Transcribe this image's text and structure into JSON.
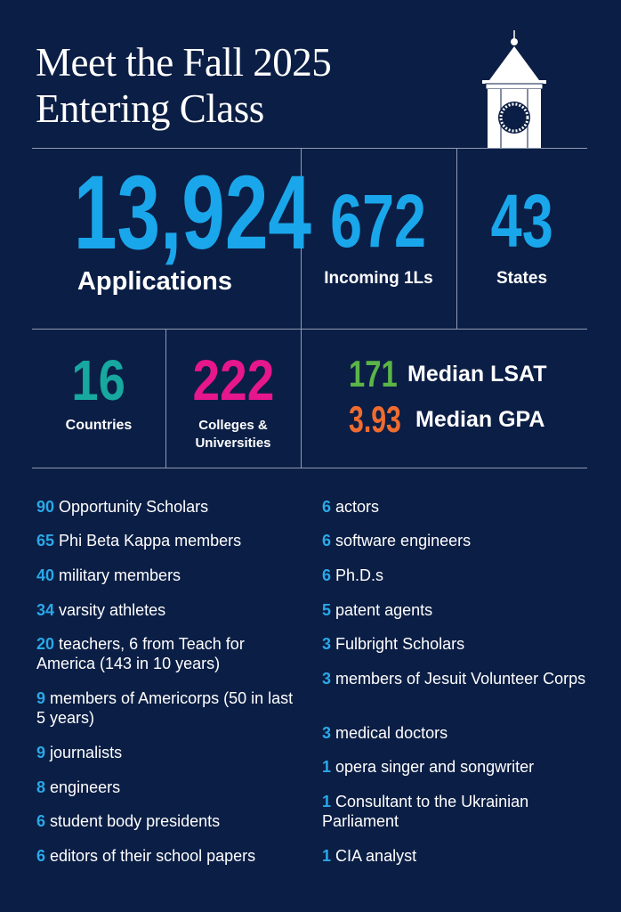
{
  "title": {
    "line1": "Meet the Fall 2025",
    "line2": "Entering Class"
  },
  "colors": {
    "background": "#0b1e45",
    "blue": "#1aa6ea",
    "teal": "#17a8a0",
    "magenta": "#e6168c",
    "green": "#5bb547",
    "orange": "#ef6c2f"
  },
  "icon": "clock-tower-icon",
  "stats": {
    "applications": {
      "value": "13,924",
      "label": "Applications"
    },
    "incoming": {
      "value": "672",
      "label": "Incoming 1Ls"
    },
    "states": {
      "value": "43",
      "label": "States"
    },
    "countries": {
      "value": "16",
      "label": "Countries"
    },
    "colleges": {
      "value": "222",
      "label1": "Colleges &",
      "label2": "Universities"
    },
    "lsat": {
      "value": "171",
      "label": "Median LSAT"
    },
    "gpa": {
      "value": "3.93",
      "label": "Median GPA"
    }
  },
  "left_list": [
    {
      "n": "90",
      "text": "Opportunity Scholars"
    },
    {
      "n": "65",
      "text": "Phi Beta Kappa members"
    },
    {
      "n": "40",
      "text": "military members"
    },
    {
      "n": "34",
      "text": "varsity athletes"
    },
    {
      "n": "20",
      "text": "teachers, 6 from Teach for America (143 in 10 years)"
    },
    {
      "n": "9",
      "text": "members of Americorps (50 in last 5 years)"
    },
    {
      "n": "9",
      "text": "journalists"
    },
    {
      "n": "8",
      "text": "engineers"
    },
    {
      "n": "6",
      "text": "student body presidents"
    },
    {
      "n": "6",
      "text": "editors of their school papers"
    }
  ],
  "right_list": [
    {
      "n": "6",
      "text": "actors"
    },
    {
      "n": "6",
      "text": "software engineers"
    },
    {
      "n": "6",
      "text": "Ph.D.s"
    },
    {
      "n": "5",
      "text": "patent agents"
    },
    {
      "n": "3",
      "text": "Fulbright Scholars"
    },
    {
      "n": "3",
      "text": "members of Jesuit Volunteer Corps"
    },
    {
      "n": "3",
      "text": "medical doctors"
    },
    {
      "n": "1",
      "text": "opera singer and songwriter"
    },
    {
      "n": "1",
      "text": "Consultant to the Ukrainian Parliament"
    },
    {
      "n": "1",
      "text": "CIA analyst"
    }
  ]
}
